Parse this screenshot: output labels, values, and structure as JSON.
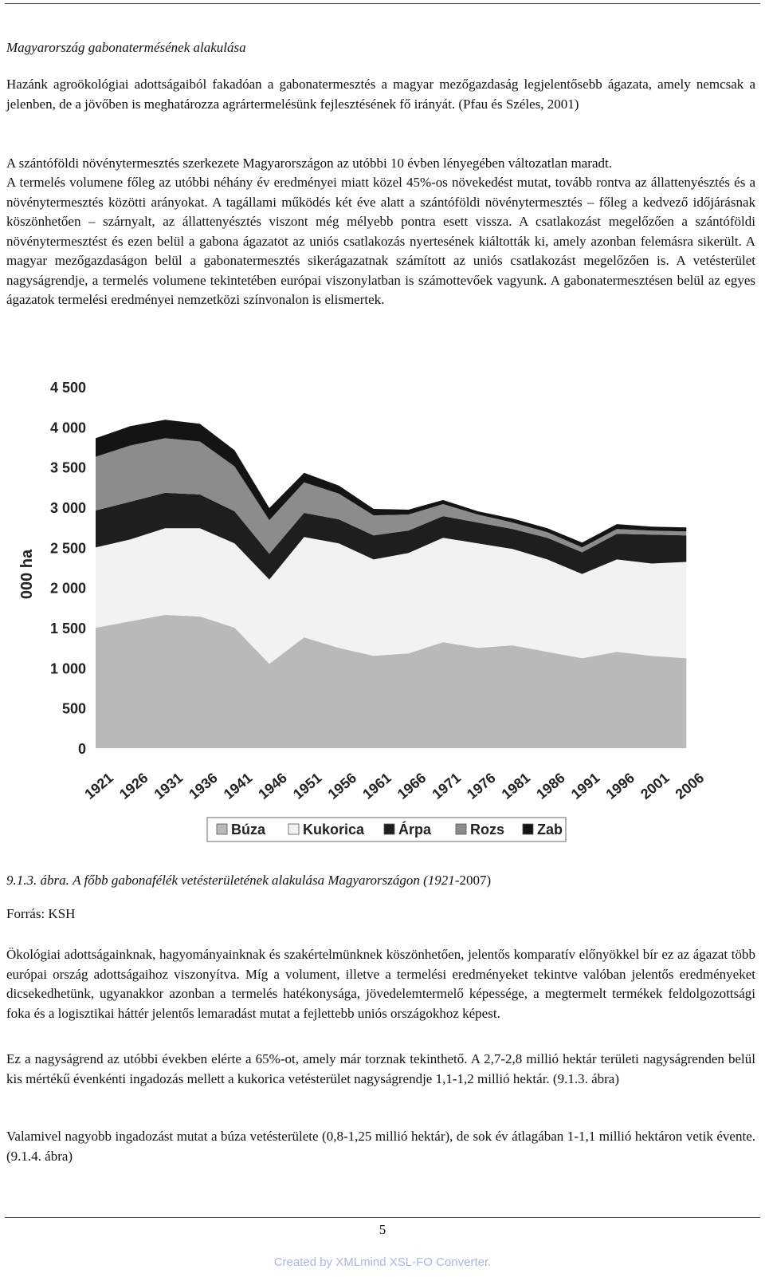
{
  "document": {
    "title": "Magyarország gabonatermésének alakulása",
    "paragraph1": "Hazánk agroökológiai adottságaiból fakadóan a gabonatermesztés a magyar mezőgazdaság legjelentősebb ágazata, amely nemcsak a jelenben, de a jövőben is meghatározza agrártermelésünk fejlesztésének fő irányát. (Pfau és Széles, 2001)",
    "paragraph2_line1": "A szántóföldi növénytermesztés szerkezete Magyarországon az utóbbi 10 évben lényegében változatlan maradt.",
    "paragraph2_rest": "A termelés volumene főleg az utóbbi néhány év eredményei miatt közel 45%-os növekedést mutat, tovább rontva az állattenyésztés és a növénytermesztés közötti arányokat. A tagállami működés két éve alatt a szántóföldi növénytermesztés – főleg a kedvező időjárásnak köszönhetően – szárnyalt, az állattenyésztés viszont még mélyebb pontra esett vissza. A csatlakozást megelőzően a szántóföldi növénytermesztést és ezen belül a gabona ágazatot az uniós csatlakozás nyertesének kiáltották ki, amely azonban felemásra sikerült. A magyar mezőgazdaságon belül a gabonatermesztés sikerágazatnak számított az uniós csatlakozást megelőzően is. A vetésterület nagyságrendje, a termelés volumene tekintetében európai viszonylatban is számottevőek vagyunk. A gabonatermesztésen belül az egyes ágazatok termelési eredményei nemzetközi színvonalon is elismertek.",
    "caption_number": "9.1.3. ábra.",
    "caption_text_italic": "A főbb gabonafélék vetésterületének alakulása Magyarországon (1921",
    "caption_text_end": "-2007)",
    "source": "Forrás: KSH",
    "paragraph4": "Ökológiai adottságainknak, hagyományainknak és szakértelmünknek köszönhetően, jelentős komparatív előnyökkel bír ez az ágazat több európai ország adottságaihoz viszonyítva. Míg a volument, illetve a termelési eredményeket tekintve valóban jelentős eredményeket dicsekedhetünk, ugyanakkor azonban a termelés hatékonysága, jövedelemtermelő képessége, a megtermelt termékek feldolgozottsági foka és a logisztikai háttér jelentős lemaradást mutat a fejlettebb uniós országokhoz képest.",
    "paragraph5": "Ez a nagyságrend az utóbbi években elérte a 65%-ot, amely már torznak tekinthető. A 2,7-2,8 millió hektár területi nagyságrenden belül kis mértékű évenkénti ingadozás mellett a kukorica vetésterület nagyságrendje 1,1-1,2 millió hektár. (9.1.3. ábra)",
    "paragraph6": "Valamivel nagyobb ingadozást mutat a búza vetésterülete (0,8-1,25 millió hektár), de sok év átlagában 1-1,1 millió hektáron vetik évente. (9.1.4. ábra)",
    "page_number": "5",
    "footer_prefix": "Created by ",
    "footer_link": "XMLmind XSL-FO Converter",
    "footer_suffix": "."
  },
  "chart_data": {
    "type": "area",
    "stacked": true,
    "ylabel": "000 ha",
    "ylim": [
      0,
      4500
    ],
    "yticks": [
      "4 500",
      "4 000",
      "3 500",
      "3 000",
      "2 500",
      "2 000",
      "1 500",
      "1 000",
      "500",
      "0"
    ],
    "ytick_values": [
      4500,
      4000,
      3500,
      3000,
      2500,
      2000,
      1500,
      1000,
      500,
      0
    ],
    "x": [
      1921,
      1926,
      1931,
      1936,
      1941,
      1946,
      1951,
      1956,
      1961,
      1966,
      1971,
      1976,
      1981,
      1986,
      1991,
      1996,
      2001,
      2006
    ],
    "xticks": [
      "1921",
      "1926",
      "1931",
      "1936",
      "1941",
      "1946",
      "1951",
      "1956",
      "1961",
      "1966",
      "1971",
      "1976",
      "1981",
      "1986",
      "1991",
      "1996",
      "2001",
      "2006"
    ],
    "xlim": [
      1921,
      2007
    ],
    "legend_position": "bottom",
    "series": [
      {
        "name": "Búza",
        "color": "#b9b9b9",
        "values": [
          1500,
          1580,
          1660,
          1640,
          1500,
          1050,
          1380,
          1250,
          1150,
          1180,
          1320,
          1250,
          1280,
          1200,
          1120,
          1200,
          1150,
          1120
        ]
      },
      {
        "name": "Kukorica",
        "color": "#f2f2f2",
        "values": [
          1000,
          1020,
          1080,
          1100,
          1050,
          1050,
          1250,
          1300,
          1200,
          1250,
          1300,
          1300,
          1200,
          1150,
          1050,
          1150,
          1150,
          1200
        ]
      },
      {
        "name": "Árpa",
        "color": "#1e1e1e",
        "values": [
          460,
          470,
          440,
          420,
          400,
          320,
          300,
          300,
          300,
          280,
          270,
          260,
          250,
          270,
          270,
          320,
          360,
          330
        ]
      },
      {
        "name": "Rozs",
        "color": "#8c8c8c",
        "values": [
          670,
          700,
          680,
          660,
          560,
          420,
          380,
          320,
          250,
          200,
          150,
          100,
          80,
          70,
          60,
          60,
          50,
          50
        ]
      },
      {
        "name": "Zab",
        "color": "#141414",
        "values": [
          230,
          240,
          230,
          220,
          200,
          150,
          120,
          100,
          80,
          60,
          50,
          40,
          50,
          50,
          60,
          60,
          50,
          50
        ]
      }
    ]
  }
}
